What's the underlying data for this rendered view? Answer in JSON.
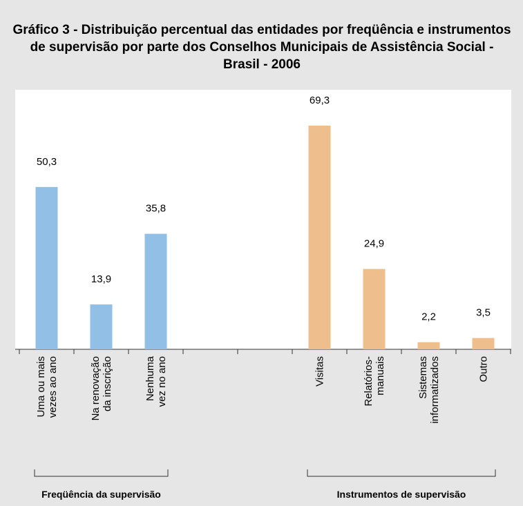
{
  "chart_data": {
    "type": "bar",
    "title": "Gráfico 3 - Distribuição percentual das entidades por freqüência e instrumentos de supervisão por parte dos Conselhos Municipais de Assistência Social - Brasil - 2006",
    "ylim": [
      0,
      80
    ],
    "groups": [
      {
        "name": "Freqüência da supervisão",
        "color": "#92bfe6",
        "categories": [
          "Uma ou mais\nvezes ao ano",
          "Na renovação\nda inscrição",
          "Nenhuma\nvez no ano"
        ],
        "values": [
          50.3,
          13.9,
          35.8
        ],
        "value_labels": [
          "50,3",
          "13,9",
          "35,8"
        ]
      },
      {
        "name": "Instrumentos de supervisão",
        "color": "#eebf8c",
        "categories": [
          "Visitas",
          "Relatórios-\nmanuais",
          "Sistemas\ninformatizados",
          "Outro"
        ],
        "values": [
          69.3,
          24.9,
          2.2,
          3.5
        ],
        "value_labels": [
          "69,3",
          "24,9",
          "2,2",
          "3,5"
        ]
      }
    ]
  }
}
